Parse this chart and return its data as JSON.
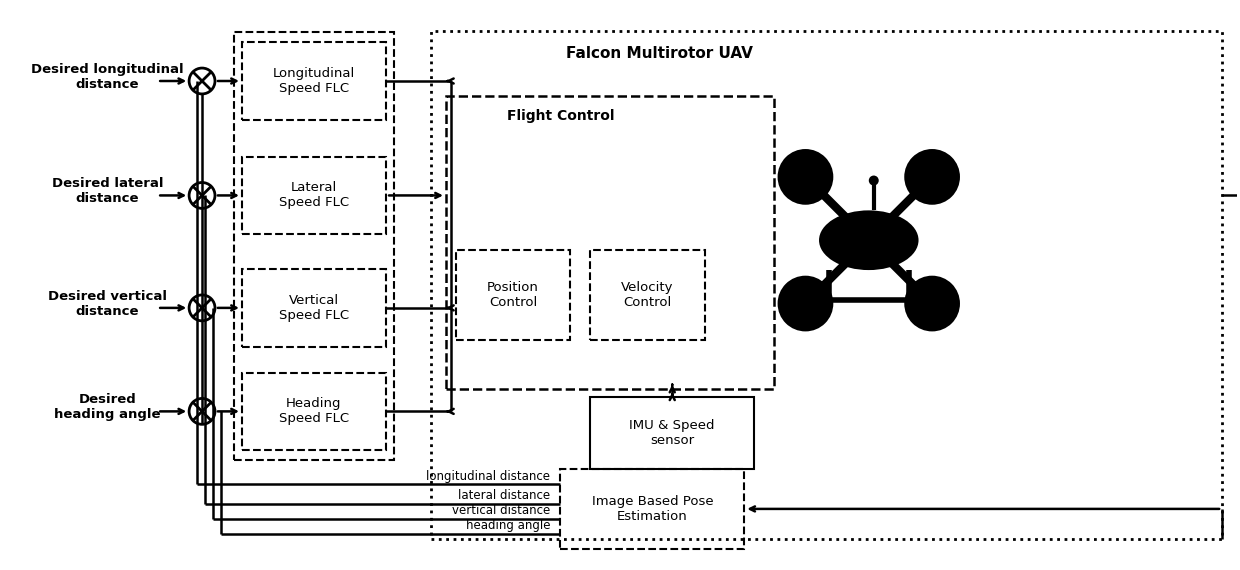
{
  "fig_width": 12.4,
  "fig_height": 5.7,
  "bg_color": "#ffffff",
  "flc_labels": [
    "Longitudinal\nSpeed FLC",
    "Lateral\nSpeed FLC",
    "Vertical\nSpeed FLC",
    "Heading\nSpeed FLC"
  ],
  "input_labels": [
    "Desired longitudinal\ndistance",
    "Desired lateral\ndistance",
    "Desired vertical\ndistance",
    "Desired\nheading angle"
  ],
  "uav_title": "Falcon Multirotor UAV",
  "flight_control_title": "Flight Control",
  "position_control_label": "Position\nControl",
  "velocity_control_label": "Velocity\nControl",
  "imu_label": "IMU & Speed\nsensor",
  "image_pose_label": "Image Based Pose\nEstimation",
  "feedback_labels": [
    "longitudinal distance",
    "lateral distance",
    "vertical distance",
    "heading angle"
  ]
}
